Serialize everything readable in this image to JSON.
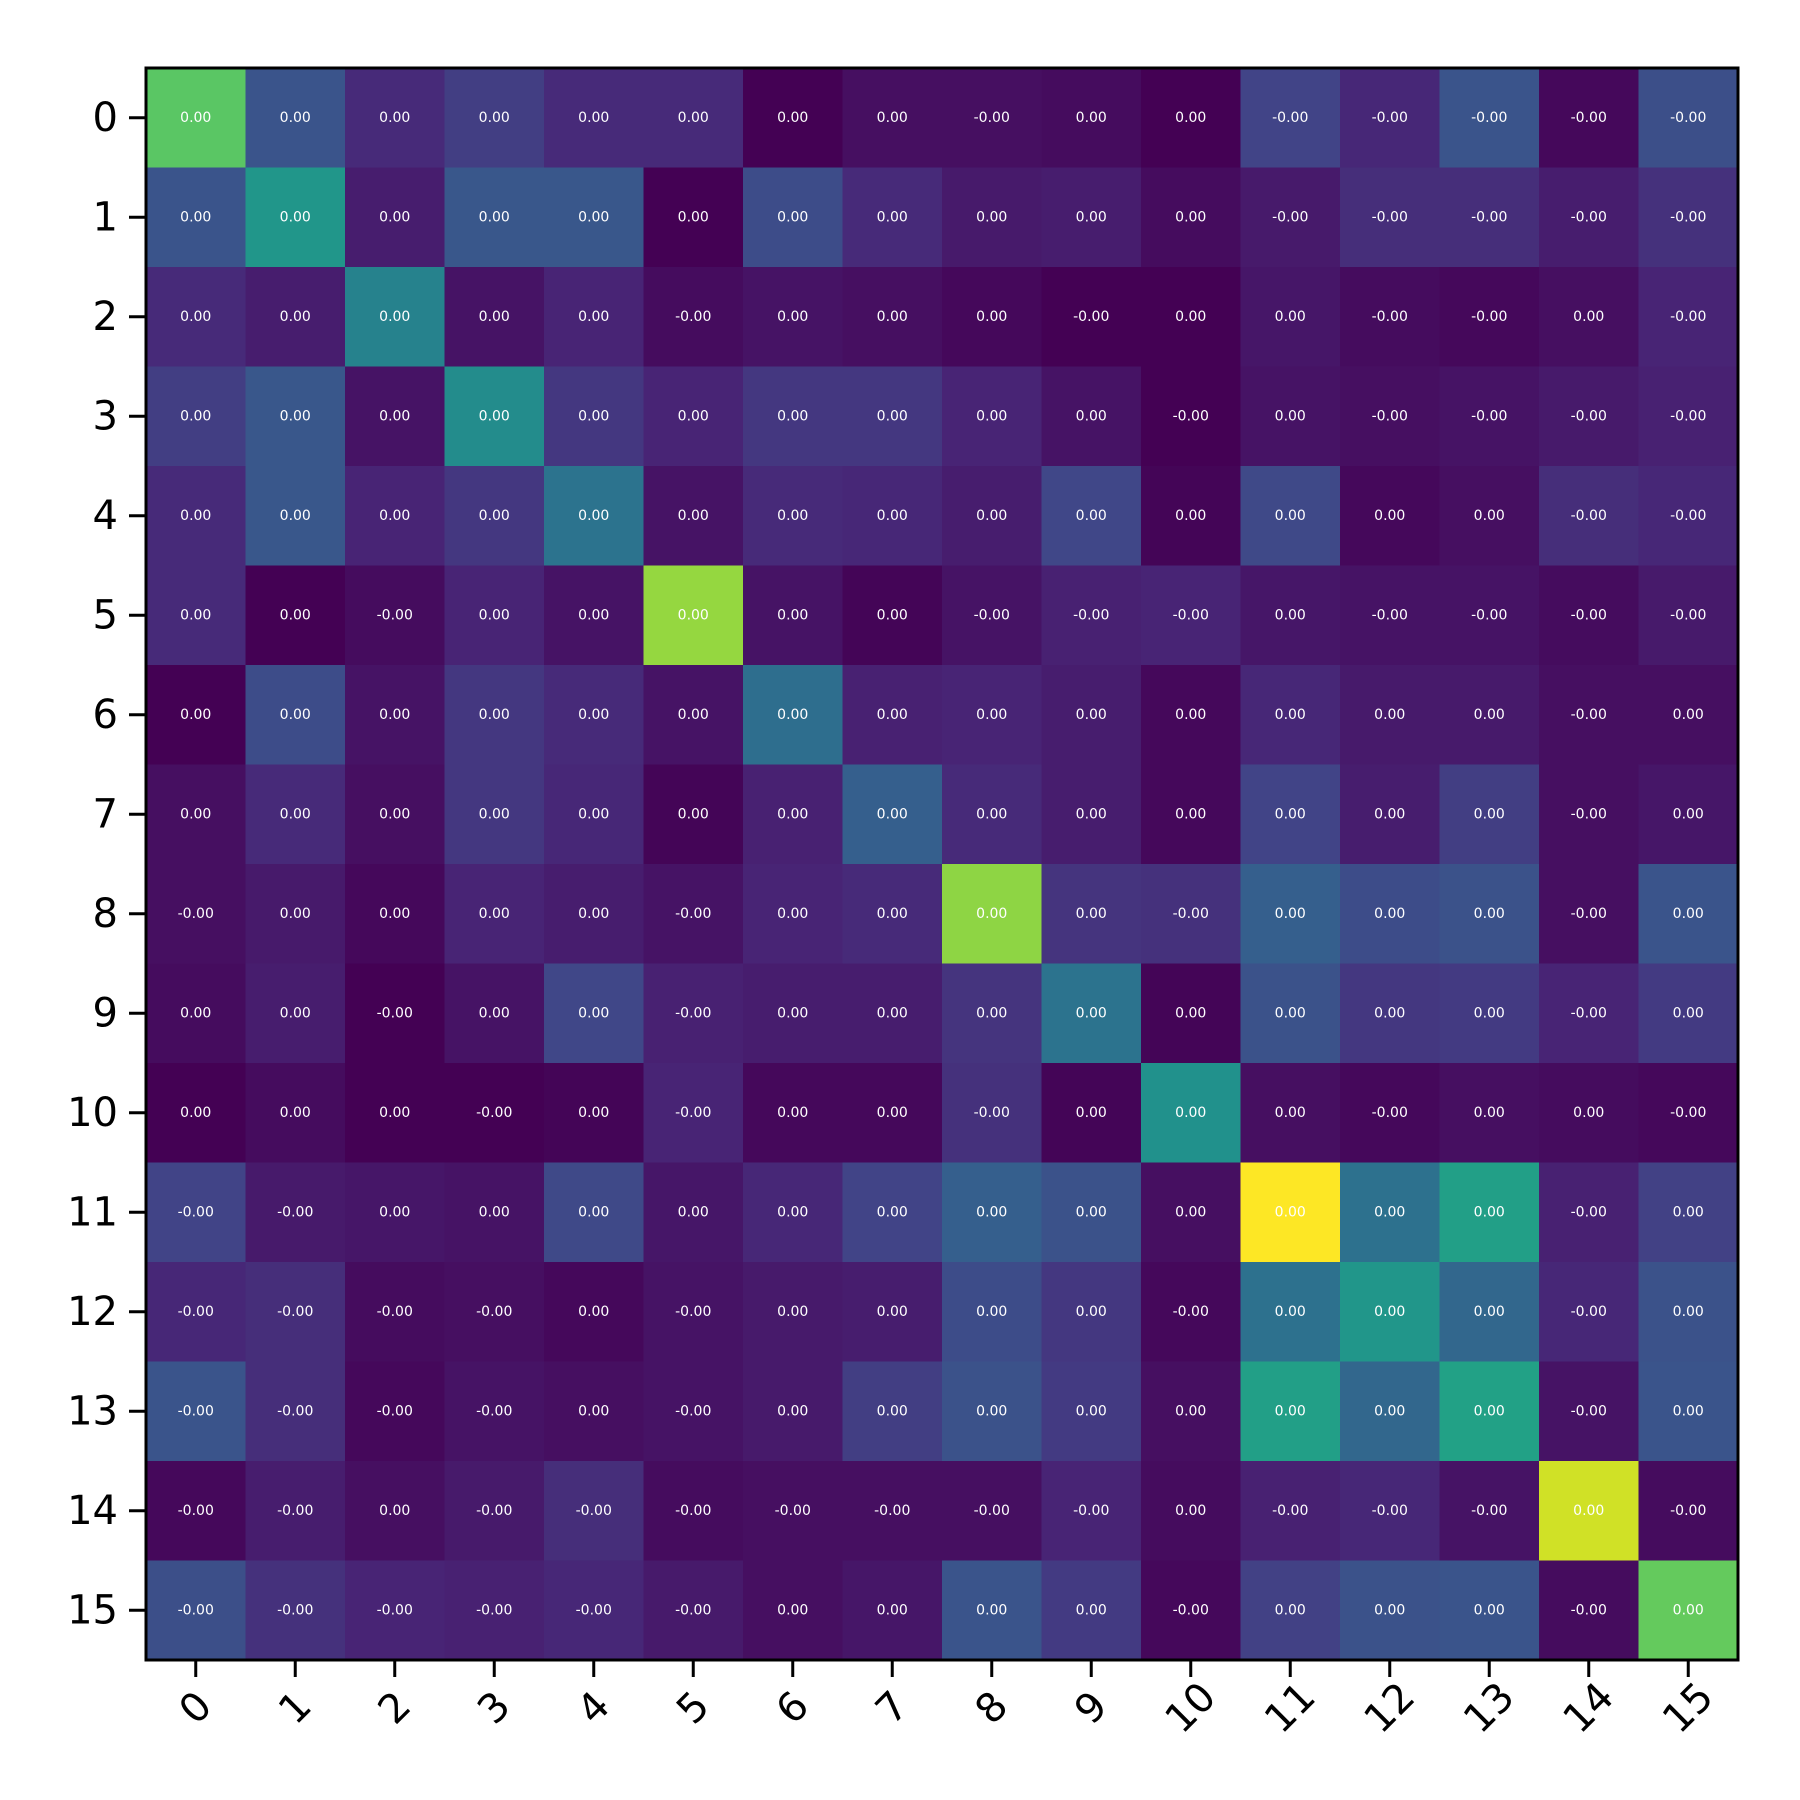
{
  "chart_data": {
    "type": "heatmap",
    "title": "",
    "xlabel": "",
    "ylabel": "",
    "colormap": "viridis",
    "color_range": [
      0,
      1
    ],
    "x_categories": [
      "0",
      "1",
      "2",
      "3",
      "4",
      "5",
      "6",
      "7",
      "8",
      "9",
      "10",
      "11",
      "12",
      "13",
      "14",
      "15"
    ],
    "y_categories": [
      "0",
      "1",
      "2",
      "3",
      "4",
      "5",
      "6",
      "7",
      "8",
      "9",
      "10",
      "11",
      "12",
      "13",
      "14",
      "15"
    ],
    "color_level": [
      [
        0.74,
        0.26,
        0.12,
        0.18,
        0.12,
        0.12,
        0.0,
        0.04,
        0.04,
        0.03,
        0.0,
        0.2,
        0.11,
        0.26,
        0.02,
        0.24
      ],
      [
        0.26,
        0.52,
        0.08,
        0.27,
        0.27,
        0.0,
        0.23,
        0.12,
        0.07,
        0.08,
        0.03,
        0.07,
        0.13,
        0.13,
        0.08,
        0.14
      ],
      [
        0.12,
        0.08,
        0.44,
        0.05,
        0.1,
        0.03,
        0.05,
        0.04,
        0.02,
        0.0,
        0.0,
        0.06,
        0.03,
        0.02,
        0.04,
        0.1
      ],
      [
        0.18,
        0.27,
        0.05,
        0.48,
        0.16,
        0.1,
        0.16,
        0.16,
        0.1,
        0.05,
        0.0,
        0.05,
        0.04,
        0.05,
        0.07,
        0.09
      ],
      [
        0.12,
        0.27,
        0.1,
        0.16,
        0.38,
        0.05,
        0.12,
        0.11,
        0.08,
        0.21,
        0.01,
        0.22,
        0.02,
        0.04,
        0.13,
        0.11
      ],
      [
        0.12,
        0.0,
        0.03,
        0.1,
        0.05,
        0.84,
        0.05,
        0.01,
        0.05,
        0.09,
        0.1,
        0.06,
        0.05,
        0.05,
        0.03,
        0.07
      ],
      [
        0.0,
        0.23,
        0.05,
        0.16,
        0.12,
        0.05,
        0.36,
        0.09,
        0.1,
        0.08,
        0.02,
        0.11,
        0.07,
        0.07,
        0.04,
        0.04
      ],
      [
        0.04,
        0.12,
        0.04,
        0.16,
        0.11,
        0.01,
        0.09,
        0.3,
        0.12,
        0.08,
        0.02,
        0.2,
        0.08,
        0.18,
        0.04,
        0.06
      ],
      [
        0.04,
        0.07,
        0.02,
        0.1,
        0.08,
        0.05,
        0.1,
        0.12,
        0.83,
        0.15,
        0.14,
        0.3,
        0.23,
        0.25,
        0.04,
        0.26
      ],
      [
        0.03,
        0.08,
        0.0,
        0.05,
        0.21,
        0.09,
        0.08,
        0.08,
        0.15,
        0.38,
        0.01,
        0.25,
        0.16,
        0.17,
        0.1,
        0.17
      ],
      [
        0.0,
        0.03,
        0.0,
        0.0,
        0.01,
        0.1,
        0.02,
        0.02,
        0.14,
        0.01,
        0.5,
        0.04,
        0.02,
        0.04,
        0.03,
        0.02
      ],
      [
        0.2,
        0.07,
        0.06,
        0.05,
        0.22,
        0.06,
        0.11,
        0.2,
        0.3,
        0.25,
        0.04,
        1.0,
        0.37,
        0.56,
        0.09,
        0.19
      ],
      [
        0.11,
        0.13,
        0.03,
        0.04,
        0.02,
        0.05,
        0.07,
        0.08,
        0.23,
        0.16,
        0.02,
        0.37,
        0.52,
        0.33,
        0.11,
        0.25
      ],
      [
        0.26,
        0.13,
        0.02,
        0.05,
        0.04,
        0.05,
        0.07,
        0.18,
        0.25,
        0.17,
        0.04,
        0.56,
        0.33,
        0.57,
        0.05,
        0.26
      ],
      [
        0.02,
        0.08,
        0.04,
        0.07,
        0.13,
        0.03,
        0.04,
        0.04,
        0.04,
        0.1,
        0.03,
        0.09,
        0.11,
        0.05,
        0.93,
        0.03
      ],
      [
        0.24,
        0.14,
        0.1,
        0.09,
        0.11,
        0.07,
        0.04,
        0.06,
        0.26,
        0.17,
        0.02,
        0.19,
        0.25,
        0.26,
        0.03,
        0.76
      ]
    ],
    "cell_labels": [
      [
        "0.00",
        "0.00",
        "0.00",
        "0.00",
        "0.00",
        "0.00",
        "0.00",
        "0.00",
        "-0.00",
        "0.00",
        "0.00",
        "-0.00",
        "-0.00",
        "-0.00",
        "-0.00",
        "-0.00"
      ],
      [
        "0.00",
        "0.00",
        "0.00",
        "0.00",
        "0.00",
        "0.00",
        "0.00",
        "0.00",
        "0.00",
        "0.00",
        "0.00",
        "-0.00",
        "-0.00",
        "-0.00",
        "-0.00",
        "-0.00"
      ],
      [
        "0.00",
        "0.00",
        "0.00",
        "0.00",
        "0.00",
        "-0.00",
        "0.00",
        "0.00",
        "0.00",
        "-0.00",
        "0.00",
        "0.00",
        "-0.00",
        "-0.00",
        "0.00",
        "-0.00"
      ],
      [
        "0.00",
        "0.00",
        "0.00",
        "0.00",
        "0.00",
        "0.00",
        "0.00",
        "0.00",
        "0.00",
        "0.00",
        "-0.00",
        "0.00",
        "-0.00",
        "-0.00",
        "-0.00",
        "-0.00"
      ],
      [
        "0.00",
        "0.00",
        "0.00",
        "0.00",
        "0.00",
        "0.00",
        "0.00",
        "0.00",
        "0.00",
        "0.00",
        "0.00",
        "0.00",
        "0.00",
        "0.00",
        "-0.00",
        "-0.00"
      ],
      [
        "0.00",
        "0.00",
        "-0.00",
        "0.00",
        "0.00",
        "0.00",
        "0.00",
        "0.00",
        "-0.00",
        "-0.00",
        "-0.00",
        "0.00",
        "-0.00",
        "-0.00",
        "-0.00",
        "-0.00"
      ],
      [
        "0.00",
        "0.00",
        "0.00",
        "0.00",
        "0.00",
        "0.00",
        "0.00",
        "0.00",
        "0.00",
        "0.00",
        "0.00",
        "0.00",
        "0.00",
        "0.00",
        "-0.00",
        "0.00"
      ],
      [
        "0.00",
        "0.00",
        "0.00",
        "0.00",
        "0.00",
        "0.00",
        "0.00",
        "0.00",
        "0.00",
        "0.00",
        "0.00",
        "0.00",
        "0.00",
        "0.00",
        "-0.00",
        "0.00"
      ],
      [
        "-0.00",
        "0.00",
        "0.00",
        "0.00",
        "0.00",
        "-0.00",
        "0.00",
        "0.00",
        "0.00",
        "0.00",
        "-0.00",
        "0.00",
        "0.00",
        "0.00",
        "-0.00",
        "0.00"
      ],
      [
        "0.00",
        "0.00",
        "-0.00",
        "0.00",
        "0.00",
        "-0.00",
        "0.00",
        "0.00",
        "0.00",
        "0.00",
        "0.00",
        "0.00",
        "0.00",
        "0.00",
        "-0.00",
        "0.00"
      ],
      [
        "0.00",
        "0.00",
        "0.00",
        "-0.00",
        "0.00",
        "-0.00",
        "0.00",
        "0.00",
        "-0.00",
        "0.00",
        "0.00",
        "0.00",
        "-0.00",
        "0.00",
        "0.00",
        "-0.00"
      ],
      [
        "-0.00",
        "-0.00",
        "0.00",
        "0.00",
        "0.00",
        "0.00",
        "0.00",
        "0.00",
        "0.00",
        "0.00",
        "0.00",
        "0.00",
        "0.00",
        "0.00",
        "-0.00",
        "0.00"
      ],
      [
        "-0.00",
        "-0.00",
        "-0.00",
        "-0.00",
        "0.00",
        "-0.00",
        "0.00",
        "0.00",
        "0.00",
        "0.00",
        "-0.00",
        "0.00",
        "0.00",
        "0.00",
        "-0.00",
        "0.00"
      ],
      [
        "-0.00",
        "-0.00",
        "-0.00",
        "-0.00",
        "0.00",
        "-0.00",
        "0.00",
        "0.00",
        "0.00",
        "0.00",
        "0.00",
        "0.00",
        "0.00",
        "0.00",
        "-0.00",
        "0.00"
      ],
      [
        "-0.00",
        "-0.00",
        "0.00",
        "-0.00",
        "-0.00",
        "-0.00",
        "-0.00",
        "-0.00",
        "-0.00",
        "-0.00",
        "0.00",
        "-0.00",
        "-0.00",
        "-0.00",
        "0.00",
        "-0.00"
      ],
      [
        "-0.00",
        "-0.00",
        "-0.00",
        "-0.00",
        "-0.00",
        "-0.00",
        "0.00",
        "0.00",
        "0.00",
        "0.00",
        "-0.00",
        "0.00",
        "0.00",
        "0.00",
        "-0.00",
        "0.00"
      ]
    ],
    "x_tick_rotation_deg": 45,
    "grid": false,
    "colorbar": false,
    "legend": "none"
  }
}
